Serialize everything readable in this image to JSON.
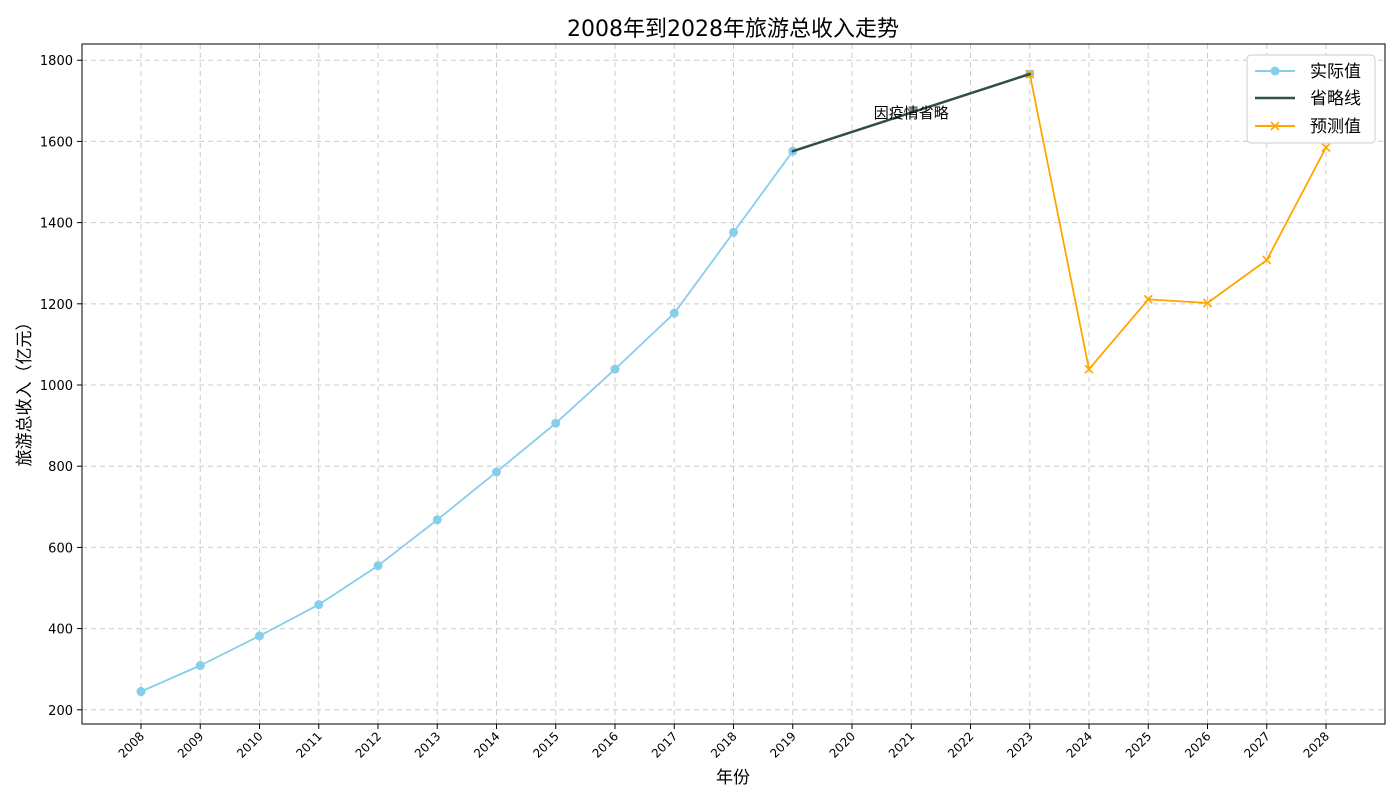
{
  "chart_data": {
    "type": "line",
    "title": "2008年到2028年旅游总收入走势",
    "xlabel": "年份",
    "ylabel": "旅游总收入（亿元）",
    "x": [
      2008,
      2009,
      2010,
      2011,
      2012,
      2013,
      2014,
      2015,
      2016,
      2017,
      2018,
      2019,
      2020,
      2021,
      2022,
      2023,
      2024,
      2025,
      2026,
      2027,
      2028
    ],
    "x_tick_labels": [
      "2008",
      "2009",
      "2010",
      "2011",
      "2012",
      "2013",
      "2014",
      "2015",
      "2016",
      "2017",
      "2018",
      "2019",
      "2020",
      "2021",
      "2022",
      "2023",
      "2024",
      "2025",
      "2026",
      "2027",
      "2028"
    ],
    "ylim": [
      165,
      1840
    ],
    "y_ticks": [
      200,
      400,
      600,
      800,
      1000,
      1200,
      1400,
      1600,
      1800
    ],
    "y_tick_labels": [
      "200",
      "400",
      "600",
      "800",
      "1000",
      "1200",
      "1400",
      "1600",
      "1800"
    ],
    "grid": true,
    "legend_position": "top-right",
    "series": [
      {
        "name": "实际值",
        "color": "#87CEEB",
        "marker": "circle",
        "points": [
          [
            2008,
            245
          ],
          [
            2009,
            309
          ],
          [
            2010,
            382
          ],
          [
            2011,
            459
          ],
          [
            2012,
            555
          ],
          [
            2013,
            668
          ],
          [
            2014,
            786
          ],
          [
            2015,
            906
          ],
          [
            2016,
            1039
          ],
          [
            2017,
            1177
          ],
          [
            2018,
            1376
          ],
          [
            2019,
            1576
          ]
        ],
        "extra_markers": [
          [
            2023,
            1766
          ]
        ]
      },
      {
        "name": "省略线",
        "color": "#2F4F4F",
        "marker": "none",
        "points": [
          [
            2019,
            1576
          ],
          [
            2023,
            1766
          ]
        ]
      },
      {
        "name": "预测值",
        "color": "#FFA500",
        "marker": "x",
        "points": [
          [
            2023,
            1766
          ],
          [
            2024,
            1039
          ],
          [
            2025,
            1211
          ],
          [
            2026,
            1202
          ],
          [
            2027,
            1308
          ],
          [
            2028,
            1585
          ]
        ]
      }
    ],
    "annotations": [
      {
        "text": "因疫情省略",
        "x": 2021,
        "y": 1670
      }
    ]
  }
}
